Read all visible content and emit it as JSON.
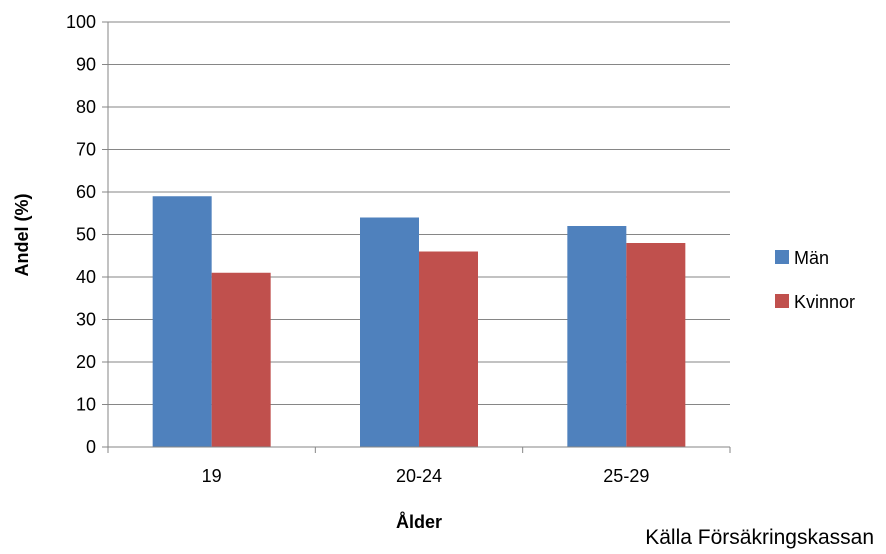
{
  "chart_data": {
    "type": "bar",
    "categories": [
      "19",
      "20-24",
      "25-29"
    ],
    "series": [
      {
        "name": "Män",
        "values": [
          59,
          54,
          52
        ],
        "color": "#4F81BD"
      },
      {
        "name": "Kvinnor",
        "values": [
          41,
          46,
          48
        ],
        "color": "#C0504D"
      }
    ],
    "xlabel": "Ålder",
    "ylabel": "Andel (%)",
    "ylim": [
      0,
      100
    ],
    "yticks": [
      0,
      10,
      20,
      30,
      40,
      50,
      60,
      70,
      80,
      90,
      100
    ],
    "grid": true,
    "legend_position": "right"
  },
  "source_note": "Källa Försäkringskassan"
}
